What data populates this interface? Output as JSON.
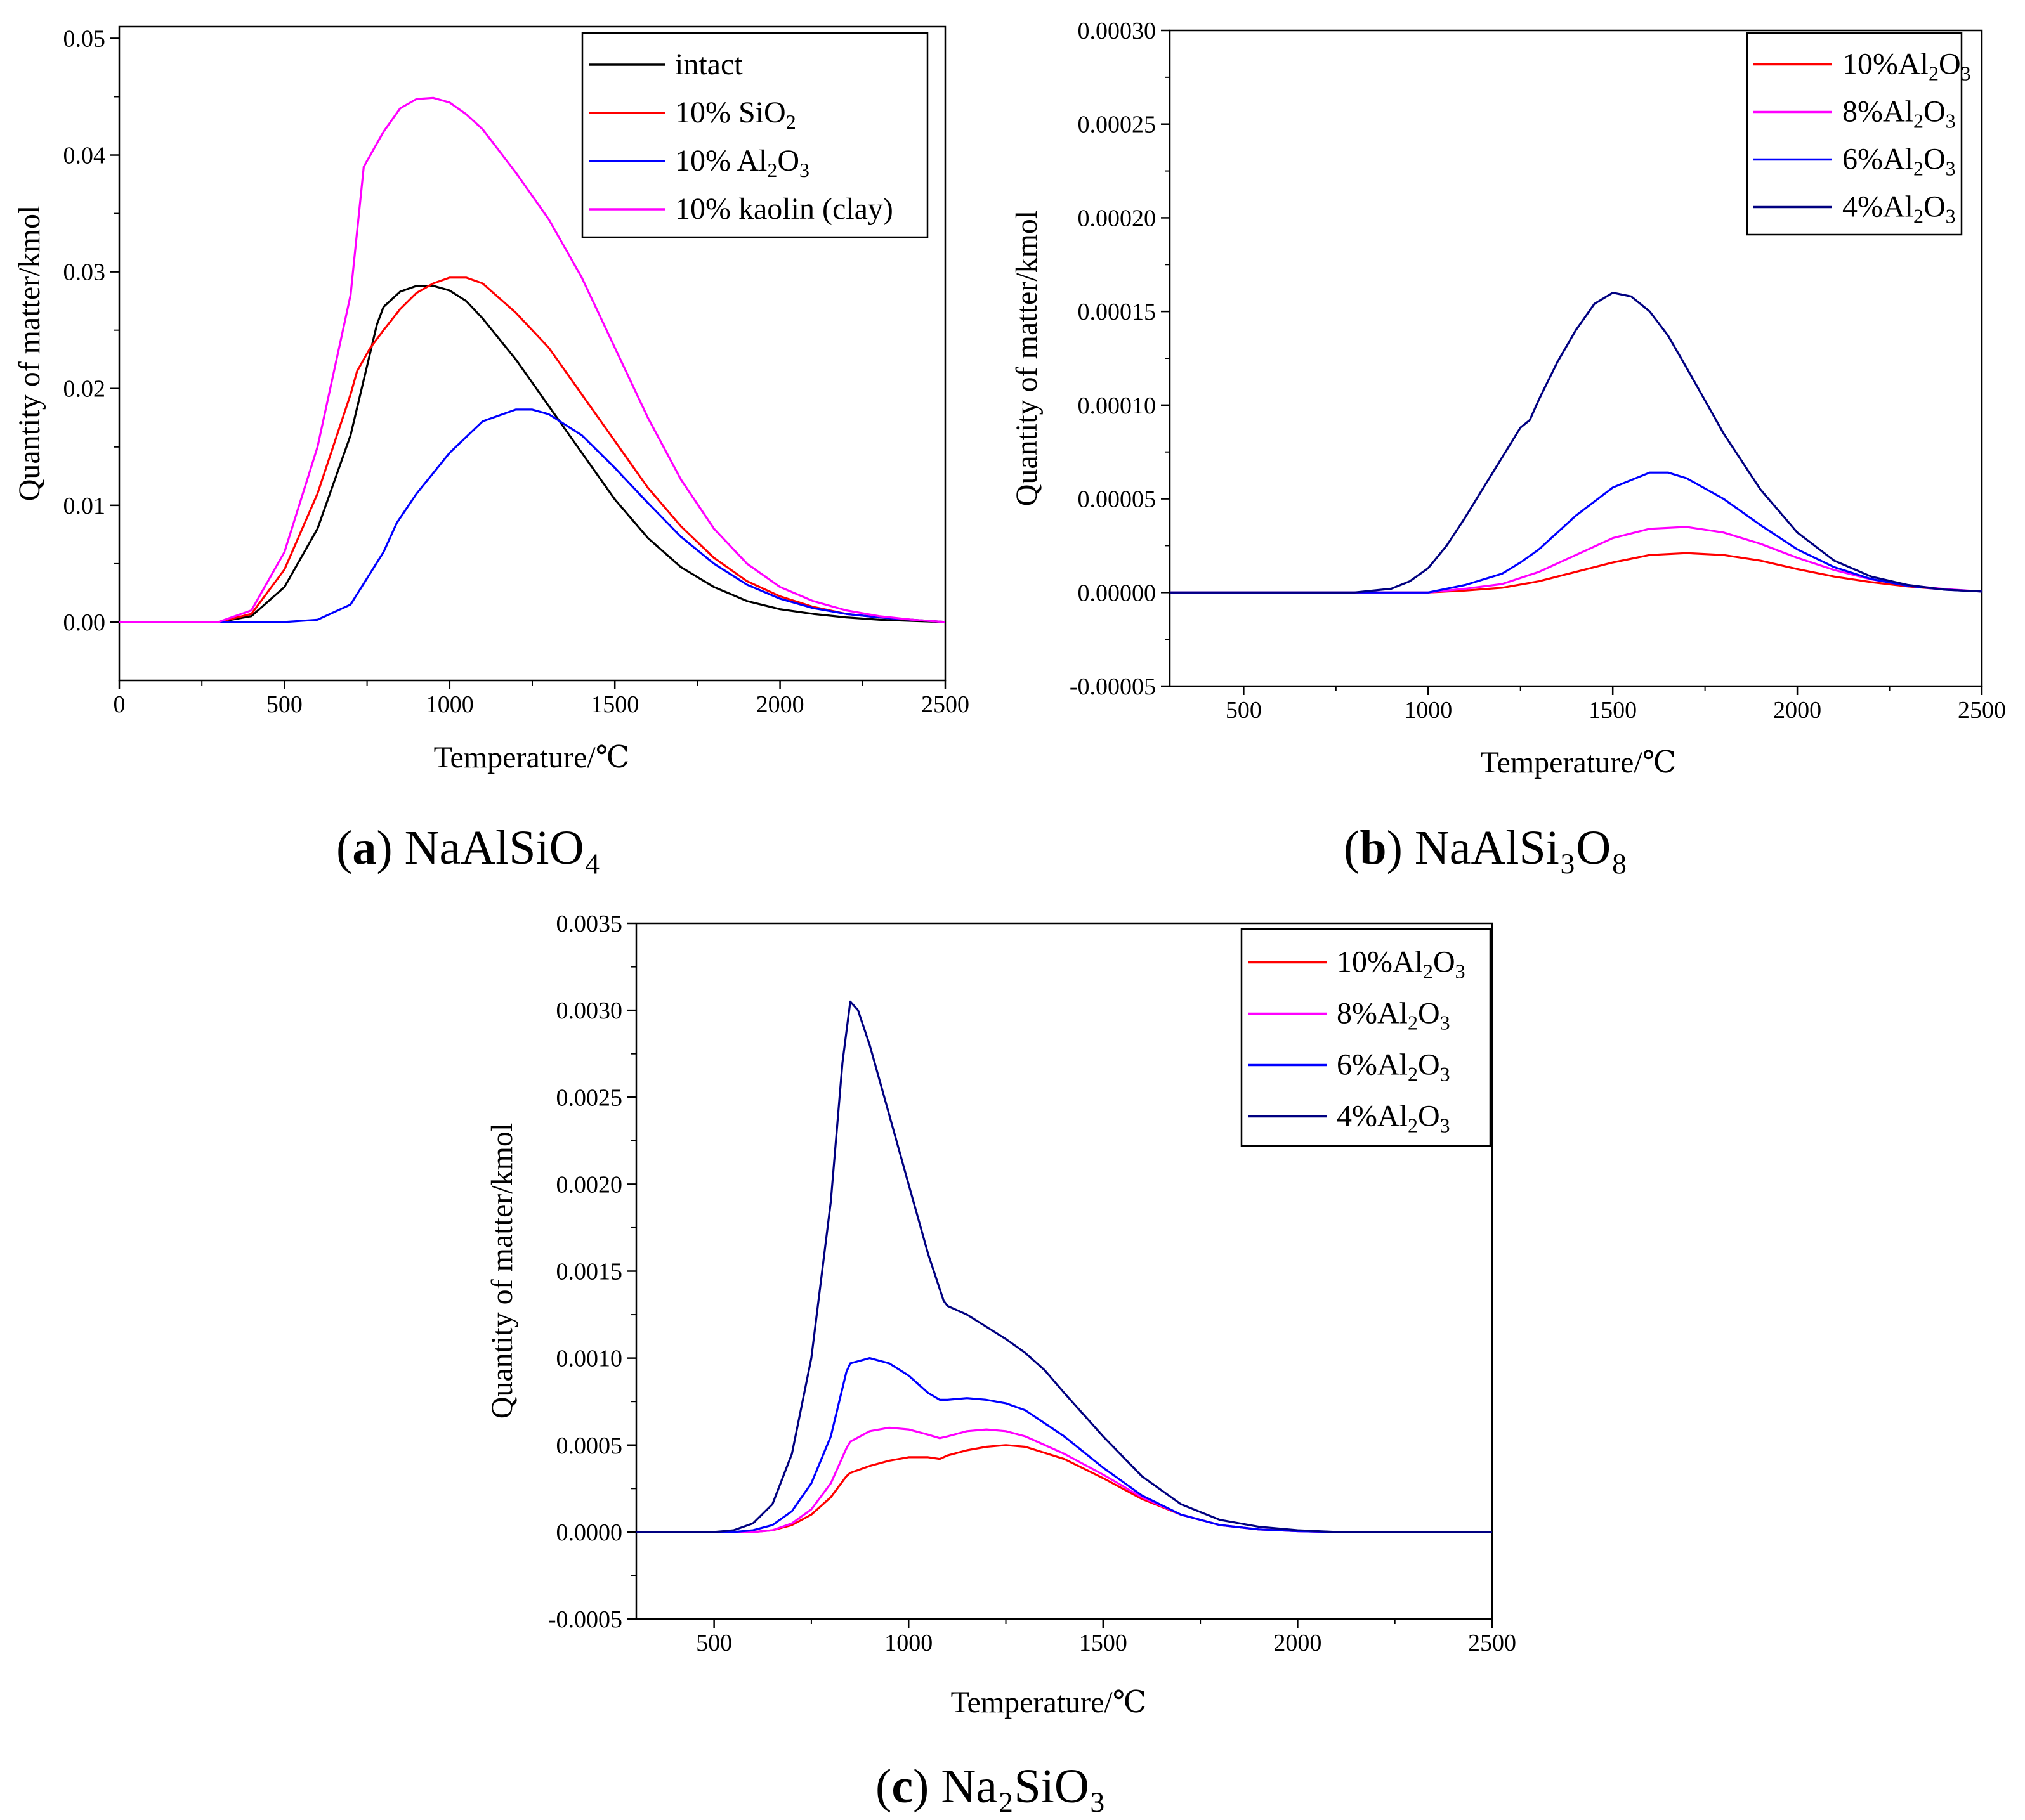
{
  "figure": {
    "captions": [
      {
        "letter": "a",
        "compound": "NaAlSiO₄"
      },
      {
        "letter": "b",
        "compound": "NaAlSi₃O₈"
      },
      {
        "letter": "c",
        "compound": "Na₂SiO₃"
      }
    ]
  },
  "colors": {
    "black": "#000000",
    "red": "#ff0000",
    "blue": "#0000ff",
    "magenta": "#ff00ff",
    "navy": "#000080"
  },
  "chart_data": [
    {
      "id": "a",
      "type": "line",
      "title": "(a) NaAlSiO4",
      "xlabel": "Temperature/℃",
      "ylabel": "Quantity of matter/kmol",
      "xlim": [
        0,
        2500
      ],
      "ylim": [
        -0.005,
        0.051
      ],
      "xticks": [
        0,
        500,
        1000,
        1500,
        2000,
        2500
      ],
      "yticks": [
        0.0,
        0.01,
        0.02,
        0.03,
        0.04,
        0.05
      ],
      "ytick_labels": [
        "0.00",
        "0.01",
        "0.02",
        "0.03",
        "0.04",
        "0.05"
      ],
      "legend_position": "top-right",
      "series": [
        {
          "name": "intact",
          "label_parts": [
            "intact"
          ],
          "color": "#000000",
          "x": [
            0,
            300,
            400,
            500,
            600,
            700,
            780,
            800,
            850,
            900,
            950,
            1000,
            1050,
            1100,
            1200,
            1300,
            1400,
            1500,
            1600,
            1700,
            1800,
            1900,
            2000,
            2100,
            2200,
            2300,
            2400,
            2500
          ],
          "y": [
            0,
            0,
            0.0005,
            0.003,
            0.008,
            0.016,
            0.0255,
            0.027,
            0.0283,
            0.0288,
            0.0288,
            0.0284,
            0.0275,
            0.026,
            0.0225,
            0.0185,
            0.0145,
            0.0105,
            0.0072,
            0.0047,
            0.003,
            0.0018,
            0.0011,
            0.0007,
            0.0004,
            0.0002,
            0.0001,
            0
          ]
        },
        {
          "name": "10% SiO2",
          "label_parts": [
            "10% SiO",
            "2",
            ""
          ],
          "color": "#ff0000",
          "x": [
            0,
            300,
            400,
            500,
            600,
            700,
            720,
            760,
            800,
            850,
            900,
            950,
            1000,
            1050,
            1100,
            1200,
            1300,
            1400,
            1500,
            1600,
            1700,
            1800,
            1900,
            2000,
            2100,
            2200,
            2300,
            2400,
            2500
          ],
          "y": [
            0,
            0,
            0.0007,
            0.0045,
            0.011,
            0.0195,
            0.0215,
            0.0235,
            0.025,
            0.0268,
            0.0282,
            0.029,
            0.0295,
            0.0295,
            0.029,
            0.0265,
            0.0235,
            0.0195,
            0.0155,
            0.0115,
            0.0082,
            0.0055,
            0.0035,
            0.0022,
            0.0013,
            0.0007,
            0.0004,
            0.0002,
            0
          ]
        },
        {
          "name": "10% Al2O3",
          "label_parts": [
            "10% Al",
            "2",
            "O",
            "3",
            ""
          ],
          "color": "#0000ff",
          "x": [
            0,
            500,
            600,
            700,
            800,
            840,
            900,
            1000,
            1100,
            1200,
            1250,
            1300,
            1400,
            1500,
            1600,
            1700,
            1800,
            1900,
            2000,
            2100,
            2200,
            2300,
            2400,
            2500
          ],
          "y": [
            0,
            0,
            0.0002,
            0.0015,
            0.006,
            0.0085,
            0.011,
            0.0145,
            0.0172,
            0.0182,
            0.0182,
            0.0178,
            0.016,
            0.0132,
            0.0102,
            0.0073,
            0.005,
            0.0032,
            0.002,
            0.0012,
            0.0007,
            0.0004,
            0.0002,
            0
          ]
        },
        {
          "name": "10% kaolin (clay)",
          "label_parts": [
            "10% kaolin (clay)"
          ],
          "color": "#ff00ff",
          "x": [
            0,
            300,
            400,
            500,
            600,
            700,
            740,
            800,
            850,
            900,
            950,
            1000,
            1050,
            1100,
            1200,
            1300,
            1400,
            1500,
            1600,
            1700,
            1800,
            1900,
            2000,
            2100,
            2200,
            2300,
            2400,
            2500
          ],
          "y": [
            0,
            0,
            0.001,
            0.006,
            0.015,
            0.028,
            0.039,
            0.042,
            0.044,
            0.0448,
            0.0449,
            0.0445,
            0.0435,
            0.0422,
            0.0385,
            0.0345,
            0.0295,
            0.0235,
            0.0175,
            0.0122,
            0.008,
            0.005,
            0.003,
            0.0018,
            0.001,
            0.0005,
            0.0002,
            0
          ]
        }
      ]
    },
    {
      "id": "b",
      "type": "line",
      "title": "(b) NaAlSi3O8",
      "xlabel": "Temperature/℃",
      "ylabel": "Quantity of matter/kmol",
      "xlim": [
        300,
        2500
      ],
      "ylim": [
        -5e-05,
        0.0003
      ],
      "xticks": [
        500,
        1000,
        1500,
        2000,
        2500
      ],
      "yticks": [
        -5e-05,
        0.0,
        5e-05,
        0.0001,
        0.00015,
        0.0002,
        0.00025,
        0.0003
      ],
      "ytick_labels": [
        "-0.00005",
        "0.00000",
        "0.00005",
        "0.00010",
        "0.00015",
        "0.00020",
        "0.00025",
        "0.00030"
      ],
      "legend_position": "top-right",
      "series": [
        {
          "name": "10%Al2O3",
          "label_parts": [
            "10%Al",
            "2",
            "O",
            "3",
            ""
          ],
          "color": "#ff0000",
          "x": [
            300,
            1000,
            1100,
            1200,
            1300,
            1400,
            1500,
            1600,
            1700,
            1800,
            1900,
            2000,
            2100,
            2200,
            2300,
            2400,
            2500
          ],
          "y": [
            0,
            0,
            1e-06,
            2.5e-06,
            6e-06,
            1.1e-05,
            1.6e-05,
            2e-05,
            2.1e-05,
            2e-05,
            1.7e-05,
            1.25e-05,
            8.5e-06,
            5.5e-06,
            3.2e-06,
            1.6e-06,
            5e-07
          ]
        },
        {
          "name": "8%Al2O3",
          "label_parts": [
            "8%Al",
            "2",
            "O",
            "3",
            ""
          ],
          "color": "#ff00ff",
          "x": [
            300,
            1000,
            1100,
            1200,
            1300,
            1400,
            1500,
            1600,
            1700,
            1800,
            1900,
            2000,
            2100,
            2200,
            2300,
            2400,
            2500
          ],
          "y": [
            0,
            0,
            2e-06,
            4.5e-06,
            1.1e-05,
            2e-05,
            2.9e-05,
            3.4e-05,
            3.5e-05,
            3.2e-05,
            2.6e-05,
            1.85e-05,
            1.2e-05,
            7e-06,
            3.8e-06,
            1.8e-06,
            5e-07
          ]
        },
        {
          "name": "6%Al2O3",
          "label_parts": [
            "6%Al",
            "2",
            "O",
            "3",
            ""
          ],
          "color": "#0000ff",
          "x": [
            300,
            1000,
            1100,
            1200,
            1250,
            1300,
            1400,
            1500,
            1600,
            1650,
            1700,
            1800,
            1900,
            2000,
            2100,
            2200,
            2300,
            2400,
            2500
          ],
          "y": [
            0,
            0,
            4e-06,
            1e-05,
            1.6e-05,
            2.3e-05,
            4.1e-05,
            5.6e-05,
            6.4e-05,
            6.4e-05,
            6.1e-05,
            5e-05,
            3.6e-05,
            2.3e-05,
            1.35e-05,
            7.2e-06,
            3.5e-06,
            1.5e-06,
            5e-07
          ]
        },
        {
          "name": "4%Al2O3",
          "label_parts": [
            "4%Al",
            "2",
            "O",
            "3",
            ""
          ],
          "color": "#000080",
          "x": [
            300,
            800,
            900,
            950,
            1000,
            1050,
            1100,
            1150,
            1200,
            1250,
            1275,
            1300,
            1350,
            1400,
            1450,
            1500,
            1550,
            1600,
            1650,
            1700,
            1800,
            1900,
            2000,
            2100,
            2200,
            2300,
            2400,
            2500
          ],
          "y": [
            0,
            0,
            2e-06,
            6e-06,
            1.3e-05,
            2.5e-05,
            4e-05,
            5.6e-05,
            7.2e-05,
            8.8e-05,
            9.2e-05,
            0.000103,
            0.000123,
            0.00014,
            0.000154,
            0.00016,
            0.000158,
            0.00015,
            0.000137,
            0.00012,
            8.5e-05,
            5.5e-05,
            3.2e-05,
            1.7e-05,
            8.5e-06,
            4e-06,
            1.5e-06,
            5e-07
          ]
        }
      ]
    },
    {
      "id": "c",
      "type": "line",
      "title": "(c) Na2SiO3",
      "xlabel": "Temperature/℃",
      "ylabel": "Quantity of matter/kmol",
      "xlim": [
        300,
        2500
      ],
      "ylim": [
        -0.0005,
        0.0035
      ],
      "xticks": [
        500,
        1000,
        1500,
        2000,
        2500
      ],
      "yticks": [
        -0.0005,
        0.0,
        0.0005,
        0.001,
        0.0015,
        0.002,
        0.0025,
        0.003,
        0.0035
      ],
      "ytick_labels": [
        "-0.0005",
        "0.0000",
        "0.0005",
        "0.0010",
        "0.0015",
        "0.0020",
        "0.0025",
        "0.0030",
        "0.0035"
      ],
      "legend_position": "top-right",
      "series": [
        {
          "name": "10%Al2O3",
          "label_parts": [
            "10%Al",
            "2",
            "O",
            "3",
            ""
          ],
          "color": "#ff0000",
          "x": [
            300,
            600,
            650,
            700,
            750,
            800,
            840,
            850,
            900,
            950,
            1000,
            1050,
            1080,
            1100,
            1150,
            1200,
            1250,
            1300,
            1400,
            1500,
            1600,
            1700,
            1800,
            1900,
            2000,
            2100,
            2200,
            2500
          ],
          "y": [
            0,
            0,
            1e-05,
            4e-05,
            0.0001,
            0.0002,
            0.00032,
            0.00034,
            0.00038,
            0.00041,
            0.00043,
            0.00043,
            0.00042,
            0.00044,
            0.00047,
            0.00049,
            0.0005,
            0.00049,
            0.00042,
            0.00031,
            0.00019,
            0.0001,
            4e-05,
            1.5e-05,
            5e-06,
            0,
            0,
            0
          ]
        },
        {
          "name": "8%Al2O3",
          "label_parts": [
            "8%Al",
            "2",
            "O",
            "3",
            ""
          ],
          "color": "#ff00ff",
          "x": [
            300,
            600,
            650,
            700,
            750,
            800,
            840,
            850,
            900,
            950,
            1000,
            1050,
            1080,
            1100,
            1150,
            1200,
            1250,
            1300,
            1400,
            1500,
            1600,
            1700,
            1800,
            1900,
            2000,
            2100,
            2200,
            2500
          ],
          "y": [
            0,
            0,
            1e-05,
            5e-05,
            0.00013,
            0.00028,
            0.00048,
            0.00052,
            0.00058,
            0.0006,
            0.00059,
            0.00056,
            0.00054,
            0.00055,
            0.00058,
            0.00059,
            0.00058,
            0.00055,
            0.00045,
            0.00033,
            0.0002,
            0.0001,
            4e-05,
            1.5e-05,
            5e-06,
            0,
            0,
            0
          ]
        },
        {
          "name": "6%Al2O3",
          "label_parts": [
            "6%Al",
            "2",
            "O",
            "3",
            ""
          ],
          "color": "#0000ff",
          "x": [
            300,
            550,
            600,
            650,
            700,
            750,
            800,
            840,
            850,
            900,
            950,
            1000,
            1050,
            1080,
            1100,
            1150,
            1200,
            1250,
            1300,
            1400,
            1500,
            1600,
            1700,
            1800,
            1900,
            2000,
            2100,
            2200,
            2500
          ],
          "y": [
            0,
            0,
            1e-05,
            4e-05,
            0.00012,
            0.00028,
            0.00055,
            0.00092,
            0.00097,
            0.001,
            0.00097,
            0.0009,
            0.0008,
            0.00076,
            0.00076,
            0.00077,
            0.00076,
            0.00074,
            0.0007,
            0.00055,
            0.00037,
            0.00021,
            0.0001,
            4e-05,
            1.5e-05,
            5e-06,
            0,
            0,
            0
          ]
        },
        {
          "name": "4%Al2O3",
          "label_parts": [
            "4%Al",
            "2",
            "O",
            "3",
            ""
          ],
          "color": "#000080",
          "x": [
            300,
            500,
            550,
            600,
            650,
            700,
            750,
            800,
            830,
            850,
            870,
            900,
            950,
            1000,
            1050,
            1090,
            1100,
            1150,
            1200,
            1250,
            1300,
            1350,
            1400,
            1500,
            1600,
            1700,
            1800,
            1900,
            2000,
            2100,
            2200,
            2500
          ],
          "y": [
            0,
            0,
            1e-05,
            5e-05,
            0.00016,
            0.00045,
            0.001,
            0.0019,
            0.0027,
            0.00305,
            0.003,
            0.0028,
            0.0024,
            0.002,
            0.0016,
            0.00133,
            0.0013,
            0.00125,
            0.00118,
            0.00111,
            0.00103,
            0.00093,
            0.0008,
            0.00055,
            0.00032,
            0.00016,
            7e-05,
            3e-05,
            1e-05,
            0,
            0,
            0
          ]
        }
      ]
    }
  ]
}
